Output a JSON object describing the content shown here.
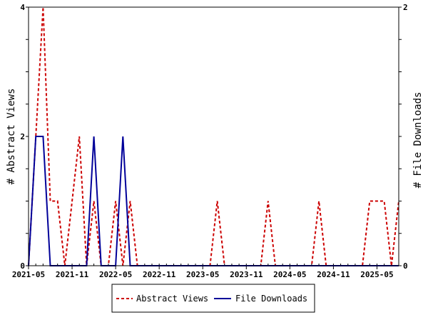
{
  "chart_data": {
    "type": "line",
    "title": "",
    "xlabel": "",
    "ylabel": "# Abstract Views",
    "y2label": "# File Downloads",
    "x_tick_labels": [
      "2021-05",
      "2021-11",
      "2022-05",
      "2022-11",
      "2023-05",
      "2023-11",
      "2024-05",
      "2024-11",
      "2025-05"
    ],
    "x_tick_months": [
      0,
      6,
      12,
      18,
      24,
      30,
      36,
      42,
      48
    ],
    "x_range_months": [
      0,
      51
    ],
    "ylim": [
      0,
      4
    ],
    "y_ticks": [
      0,
      2,
      4
    ],
    "y2lim": [
      0,
      2
    ],
    "y2_ticks": [
      0,
      2
    ],
    "legend_position": "bottom",
    "series": [
      {
        "name": "Abstract Views",
        "axis": "left",
        "color": "#cc0000",
        "style": "dashed",
        "x": [
          0,
          1,
          2,
          3,
          4,
          5,
          6,
          7,
          8,
          9,
          10,
          11,
          12,
          13,
          14,
          15,
          16,
          17,
          18,
          19,
          20,
          21,
          22,
          23,
          24,
          25,
          26,
          27,
          28,
          29,
          30,
          31,
          32,
          33,
          34,
          35,
          36,
          37,
          38,
          39,
          40,
          41,
          42,
          43,
          44,
          45,
          46,
          47,
          48,
          49,
          50,
          51
        ],
        "y": [
          0,
          2,
          4,
          1,
          1,
          0,
          1,
          2,
          0,
          1,
          0,
          0,
          1,
          0,
          1,
          0,
          0,
          0,
          0,
          0,
          0,
          0,
          0,
          0,
          0,
          0,
          1,
          0,
          0,
          0,
          0,
          0,
          0,
          1,
          0,
          0,
          0,
          0,
          0,
          0,
          1,
          0,
          0,
          0,
          0,
          0,
          0,
          1,
          1,
          1,
          0,
          1
        ]
      },
      {
        "name": "File Downloads",
        "axis": "right",
        "color": "#000099",
        "style": "solid",
        "x": [
          0,
          1,
          2,
          3,
          4,
          5,
          6,
          7,
          8,
          9,
          10,
          11,
          12,
          13,
          14,
          15,
          16,
          17,
          18,
          19,
          20,
          21,
          22,
          23,
          24,
          25,
          26,
          27,
          28,
          29,
          30,
          31,
          32,
          33,
          34,
          35,
          36,
          37,
          38,
          39,
          40,
          41,
          42,
          43,
          44,
          45,
          46,
          47,
          48,
          49,
          50,
          51
        ],
        "y": [
          0,
          1,
          1,
          0,
          0,
          0,
          0,
          0,
          0,
          1,
          0,
          0,
          0,
          1,
          0,
          0,
          0,
          0,
          0,
          0,
          0,
          0,
          0,
          0,
          0,
          0,
          0,
          0,
          0,
          0,
          0,
          0,
          0,
          0,
          0,
          0,
          0,
          0,
          0,
          0,
          0,
          0,
          0,
          0,
          0,
          0,
          0,
          0,
          0,
          0,
          0,
          0
        ]
      }
    ]
  }
}
